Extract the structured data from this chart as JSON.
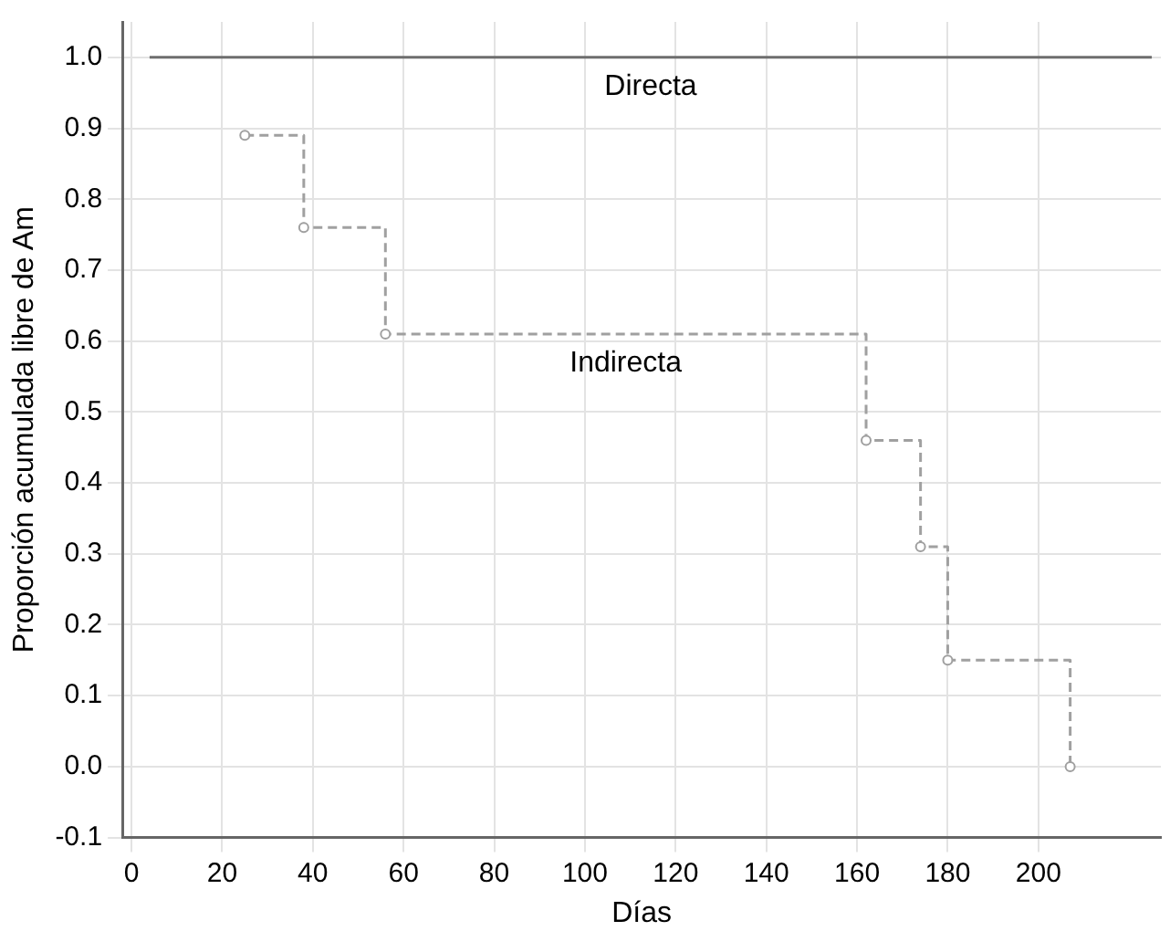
{
  "chart_data": {
    "type": "step",
    "xlabel": "Días",
    "ylabel": "Proporción acumulada libre de Am",
    "xlim": [
      -2,
      227
    ],
    "xticks": [
      0,
      20,
      40,
      60,
      80,
      100,
      120,
      140,
      160,
      180,
      200
    ],
    "ylim": [
      -0.1,
      1.05
    ],
    "yticks": [
      -0.1,
      {
        "value": 0,
        "label": "0.0"
      },
      0.1,
      0.2,
      0.3,
      0.4,
      0.5,
      0.6,
      0.7,
      0.8,
      0.9,
      {
        "value": 1,
        "label": "1.0"
      }
    ],
    "grid": true,
    "legend": false,
    "series": [
      {
        "name": "Directa",
        "color": "#6e6e6e",
        "x": [
          4,
          225
        ],
        "values": [
          1.0,
          1.0
        ],
        "line_style": "solid",
        "marker": "none"
      },
      {
        "name": "Indirecta",
        "color": "#a0a0a0",
        "x": [
          25,
          38,
          56,
          162,
          174,
          180,
          207
        ],
        "values": [
          0.89,
          0.76,
          0.61,
          0.46,
          0.31,
          0.15,
          0.0
        ],
        "line_style": "dashed",
        "marker": "circle"
      }
    ]
  }
}
